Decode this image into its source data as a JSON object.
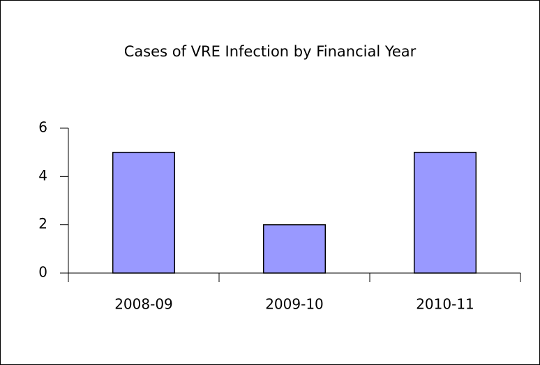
{
  "chart_data": {
    "type": "bar",
    "title": "Cases of VRE Infection by Financial Year",
    "categories": [
      "2008-09",
      "2009-10",
      "2010-11"
    ],
    "values": [
      5,
      2,
      5
    ],
    "color": "#9999ff",
    "ylim": [
      0,
      6
    ],
    "yticks": [
      0,
      2,
      4,
      6
    ],
    "grid": false
  }
}
